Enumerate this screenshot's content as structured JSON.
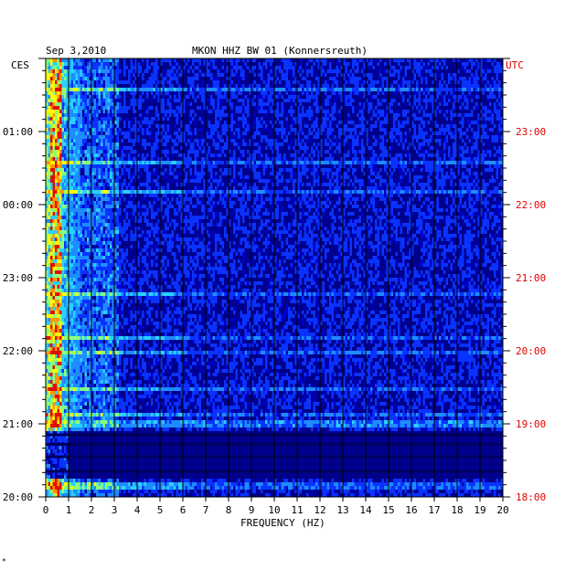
{
  "chart_data": {
    "type": "heatmap",
    "title_date": "Sep 3,2010",
    "title_station": "MKON HHZ BW 01 (Konnersreuth)",
    "left_timezone": "CES",
    "right_timezone": "UTC",
    "xlabel": "FREQUENCY (HZ)",
    "x_ticks": [
      0,
      1,
      2,
      3,
      4,
      5,
      6,
      7,
      8,
      9,
      10,
      11,
      12,
      13,
      14,
      15,
      16,
      17,
      18,
      19,
      20
    ],
    "xlim": [
      0,
      20
    ],
    "left_time_labels": [
      "01:00",
      "00:00",
      "23:00",
      "22:00",
      "21:00",
      "20:00"
    ],
    "right_time_labels": [
      "23:00",
      "22:00",
      "21:00",
      "20:00",
      "19:00",
      "18:00"
    ],
    "hours_span": 6,
    "colorscale": [
      "#00007a",
      "#0000c8",
      "#0a32ff",
      "#1e8cff",
      "#28d2ff",
      "#8cff78",
      "#ffff00",
      "#ff9600",
      "#e01000"
    ],
    "background_color": "#00008c",
    "gap_color": "#000060",
    "footnote": "*"
  }
}
